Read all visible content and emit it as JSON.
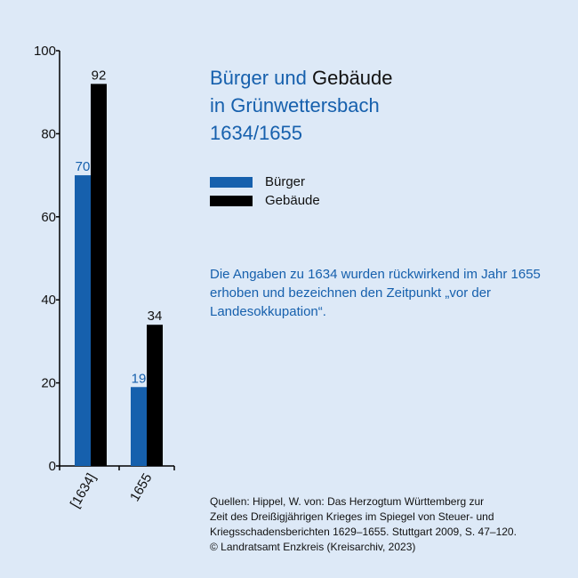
{
  "title": {
    "part1": "Bürger und",
    "part2": "Gebäude",
    "line2": "in Grünwettersbach",
    "line3": "1634/1655"
  },
  "legend": [
    {
      "label": "Bürger",
      "color": "#1660ad"
    },
    {
      "label": "Gebäude",
      "color": "#000000"
    }
  ],
  "note": "Die Angaben zu 1634 wurden rückwirkend im Jahr 1655 erhoben und bezeichnen den Zeitpunkt „vor der Landesokkupation“.",
  "source": [
    "Quellen: Hippel, W. von: Das Herzogtum Württemberg zur",
    "Zeit des Dreißigjährigen Krieges im Spiegel von Steuer- und",
    "Kriegsschadensberichten 1629–1655. Stuttgart 2009, S. 47–120.",
    "© Landratsamt Enzkreis (Kreisarchiv, 2023)"
  ],
  "chart_data": {
    "type": "bar",
    "categories": [
      "[1634]",
      "1655"
    ],
    "series": [
      {
        "name": "Bürger",
        "values": [
          70,
          19
        ],
        "color": "#1660ad"
      },
      {
        "name": "Gebäude",
        "values": [
          92,
          34
        ],
        "color": "#000000"
      }
    ],
    "ylim": [
      0,
      100
    ],
    "yticks": [
      0,
      20,
      40,
      60,
      80,
      100
    ],
    "grid": false,
    "legend_position": "right"
  }
}
